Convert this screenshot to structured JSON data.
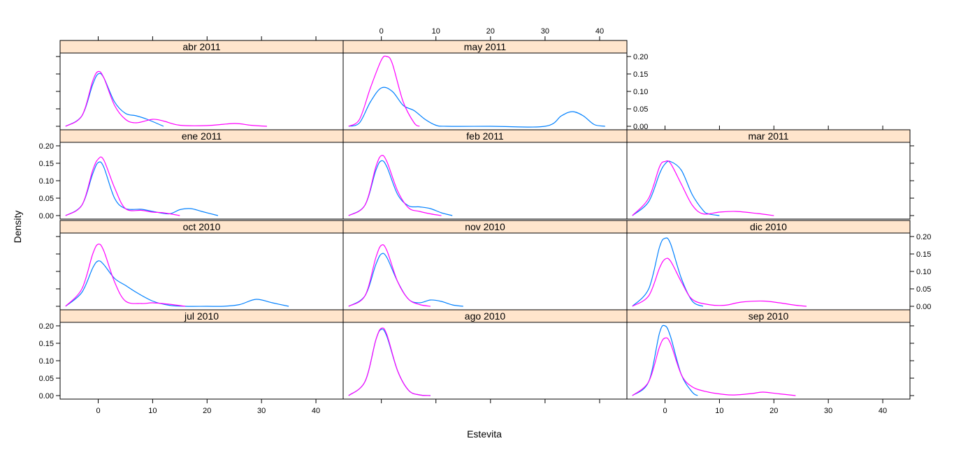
{
  "colors": {
    "strip_background": "#FFE5CC",
    "panel_border": "#000000",
    "series_blue": "#0080FF",
    "series_magenta": "#FF00FF"
  },
  "chart_data": {
    "type": "line",
    "xlabel": "Estevita",
    "ylabel": "Density",
    "xlim": [
      -7,
      45
    ],
    "ylim": [
      -0.01,
      0.21
    ],
    "xticks": [
      0,
      10,
      20,
      30,
      40
    ],
    "yticks": [
      0.0,
      0.05,
      0.1,
      0.15,
      0.2
    ],
    "ytick_labels": [
      "0.00",
      "0.05",
      "0.10",
      "0.15",
      "0.20"
    ],
    "grid": false,
    "legend": "none",
    "panels": [
      {
        "label": "abr 2011",
        "series": [
          {
            "color": "#0080FF",
            "x": [
              -6,
              -3,
              -1,
              0,
              1,
              3,
              5,
              7,
              9,
              12
            ],
            "y": [
              0.0,
              0.03,
              0.12,
              0.15,
              0.14,
              0.07,
              0.037,
              0.03,
              0.02,
              0.0
            ]
          },
          {
            "color": "#FF00FF",
            "x": [
              -6,
              -3,
              -1,
              0,
              1,
              3,
              5,
              7,
              10,
              12,
              15,
              20,
              25,
              28,
              31
            ],
            "y": [
              0.0,
              0.03,
              0.13,
              0.157,
              0.14,
              0.06,
              0.02,
              0.01,
              0.02,
              0.015,
              0.003,
              0.002,
              0.008,
              0.003,
              0.0
            ]
          }
        ]
      },
      {
        "label": "may 2011",
        "series": [
          {
            "color": "#0080FF",
            "x": [
              -6,
              -4,
              -2,
              0,
              2,
              4,
              6,
              8,
              10,
              12,
              20,
              30,
              33,
              35,
              37,
              39,
              41
            ],
            "y": [
              0.0,
              0.01,
              0.07,
              0.11,
              0.1,
              0.06,
              0.045,
              0.02,
              0.003,
              0.0,
              0.0,
              0.0,
              0.03,
              0.042,
              0.03,
              0.005,
              0.0
            ]
          },
          {
            "color": "#FF00FF",
            "x": [
              -6,
              -4,
              -2,
              0,
              1,
              2,
              4,
              6,
              7
            ],
            "y": [
              0.0,
              0.02,
              0.11,
              0.19,
              0.2,
              0.18,
              0.07,
              0.01,
              0.0
            ]
          }
        ]
      },
      {
        "label": "ene 2011",
        "series": [
          {
            "color": "#0080FF",
            "x": [
              -6,
              -3,
              -1,
              0,
              1,
              3,
              5,
              8,
              10,
              13,
              15,
              17,
              19,
              22
            ],
            "y": [
              0.0,
              0.03,
              0.12,
              0.152,
              0.14,
              0.05,
              0.02,
              0.018,
              0.012,
              0.005,
              0.017,
              0.02,
              0.012,
              0.0
            ]
          },
          {
            "color": "#FF00FF",
            "x": [
              -6,
              -3,
              -1,
              0,
              1,
              3,
              5,
              8,
              10,
              12,
              15
            ],
            "y": [
              0.0,
              0.03,
              0.13,
              0.162,
              0.16,
              0.08,
              0.02,
              0.015,
              0.01,
              0.008,
              0.0
            ]
          }
        ]
      },
      {
        "label": "feb 2011",
        "series": [
          {
            "color": "#0080FF",
            "x": [
              -6,
              -3,
              -1,
              0,
              1,
              3,
              5,
              7,
              9,
              11,
              13
            ],
            "y": [
              0.0,
              0.03,
              0.13,
              0.157,
              0.14,
              0.06,
              0.028,
              0.025,
              0.02,
              0.008,
              0.0
            ]
          },
          {
            "color": "#FF00FF",
            "x": [
              -6,
              -3,
              -1,
              0,
              1,
              3,
              5,
              7,
              9,
              11
            ],
            "y": [
              0.0,
              0.03,
              0.14,
              0.172,
              0.155,
              0.07,
              0.022,
              0.012,
              0.005,
              0.0
            ]
          }
        ]
      },
      {
        "label": "mar 2011",
        "series": [
          {
            "color": "#0080FF",
            "x": [
              -6,
              -3,
              -1,
              0,
              1,
              3,
              5,
              7,
              8,
              10
            ],
            "y": [
              0.0,
              0.04,
              0.12,
              0.148,
              0.155,
              0.13,
              0.06,
              0.015,
              0.005,
              0.0
            ]
          },
          {
            "color": "#FF00FF",
            "x": [
              -6,
              -3,
              -1,
              0,
              1,
              3,
              5,
              7,
              10,
              13,
              17,
              20
            ],
            "y": [
              0.0,
              0.05,
              0.14,
              0.155,
              0.15,
              0.09,
              0.03,
              0.005,
              0.01,
              0.012,
              0.006,
              0.0
            ]
          }
        ]
      },
      {
        "label": "oct 2010",
        "series": [
          {
            "color": "#0080FF",
            "x": [
              -6,
              -3,
              -1,
              0,
              1,
              3,
              5,
              7,
              10,
              13,
              16,
              20,
              23,
              26,
              29,
              32,
              35
            ],
            "y": [
              0.0,
              0.04,
              0.11,
              0.13,
              0.12,
              0.08,
              0.06,
              0.04,
              0.015,
              0.003,
              0.0,
              0.0,
              0.0,
              0.005,
              0.02,
              0.01,
              0.0
            ]
          },
          {
            "color": "#FF00FF",
            "x": [
              -6,
              -3,
              -1,
              0,
              1,
              3,
              5,
              8,
              10,
              13,
              16
            ],
            "y": [
              0.0,
              0.05,
              0.15,
              0.178,
              0.16,
              0.07,
              0.015,
              0.008,
              0.01,
              0.006,
              0.0
            ]
          }
        ]
      },
      {
        "label": "nov 2010",
        "series": [
          {
            "color": "#0080FF",
            "x": [
              -6,
              -3,
              -1,
              0,
              1,
              3,
              5,
              7,
              9,
              11,
              13,
              15
            ],
            "y": [
              0.0,
              0.03,
              0.12,
              0.15,
              0.14,
              0.07,
              0.02,
              0.01,
              0.018,
              0.014,
              0.004,
              0.0
            ]
          },
          {
            "color": "#FF00FF",
            "x": [
              -6,
              -3,
              -1,
              0,
              1,
              3,
              5,
              7,
              9
            ],
            "y": [
              0.0,
              0.03,
              0.14,
              0.175,
              0.16,
              0.07,
              0.02,
              0.005,
              0.0
            ]
          }
        ]
      },
      {
        "label": "dic 2010",
        "series": [
          {
            "color": "#0080FF",
            "x": [
              -6,
              -3,
              -1,
              0,
              1,
              3,
              5,
              7
            ],
            "y": [
              0.0,
              0.05,
              0.17,
              0.195,
              0.18,
              0.08,
              0.015,
              0.0
            ]
          },
          {
            "color": "#FF00FF",
            "x": [
              -6,
              -3,
              -1,
              0,
              1,
              3,
              5,
              8,
              11,
              14,
              18,
              21,
              24,
              26
            ],
            "y": [
              0.0,
              0.03,
              0.11,
              0.135,
              0.13,
              0.07,
              0.02,
              0.005,
              0.003,
              0.012,
              0.015,
              0.01,
              0.003,
              0.0
            ]
          }
        ]
      },
      {
        "label": "jul 2010",
        "series": []
      },
      {
        "label": "ago 2010",
        "series": [
          {
            "color": "#0080FF",
            "x": [
              -6,
              -3,
              -1,
              0,
              1,
              3,
              5,
              7,
              9
            ],
            "y": [
              0.0,
              0.04,
              0.16,
              0.19,
              0.17,
              0.07,
              0.015,
              0.002,
              0.0
            ]
          },
          {
            "color": "#FF00FF",
            "x": [
              -6,
              -3,
              -1,
              0,
              1,
              3,
              5,
              7,
              9
            ],
            "y": [
              0.0,
              0.04,
              0.16,
              0.193,
              0.175,
              0.07,
              0.015,
              0.002,
              0.0
            ]
          }
        ]
      },
      {
        "label": "sep 2010",
        "series": [
          {
            "color": "#0080FF",
            "x": [
              -6,
              -3,
              -1,
              0,
              1,
              3,
              5,
              6
            ],
            "y": [
              0.0,
              0.04,
              0.18,
              0.2,
              0.17,
              0.06,
              0.01,
              0.0
            ]
          },
          {
            "color": "#FF00FF",
            "x": [
              -6,
              -3,
              -1,
              0,
              1,
              3,
              5,
              8,
              11,
              13,
              16,
              18,
              21,
              24
            ],
            "y": [
              0.0,
              0.04,
              0.14,
              0.165,
              0.15,
              0.06,
              0.025,
              0.01,
              0.003,
              0.002,
              0.006,
              0.01,
              0.005,
              0.0
            ]
          }
        ]
      }
    ]
  }
}
